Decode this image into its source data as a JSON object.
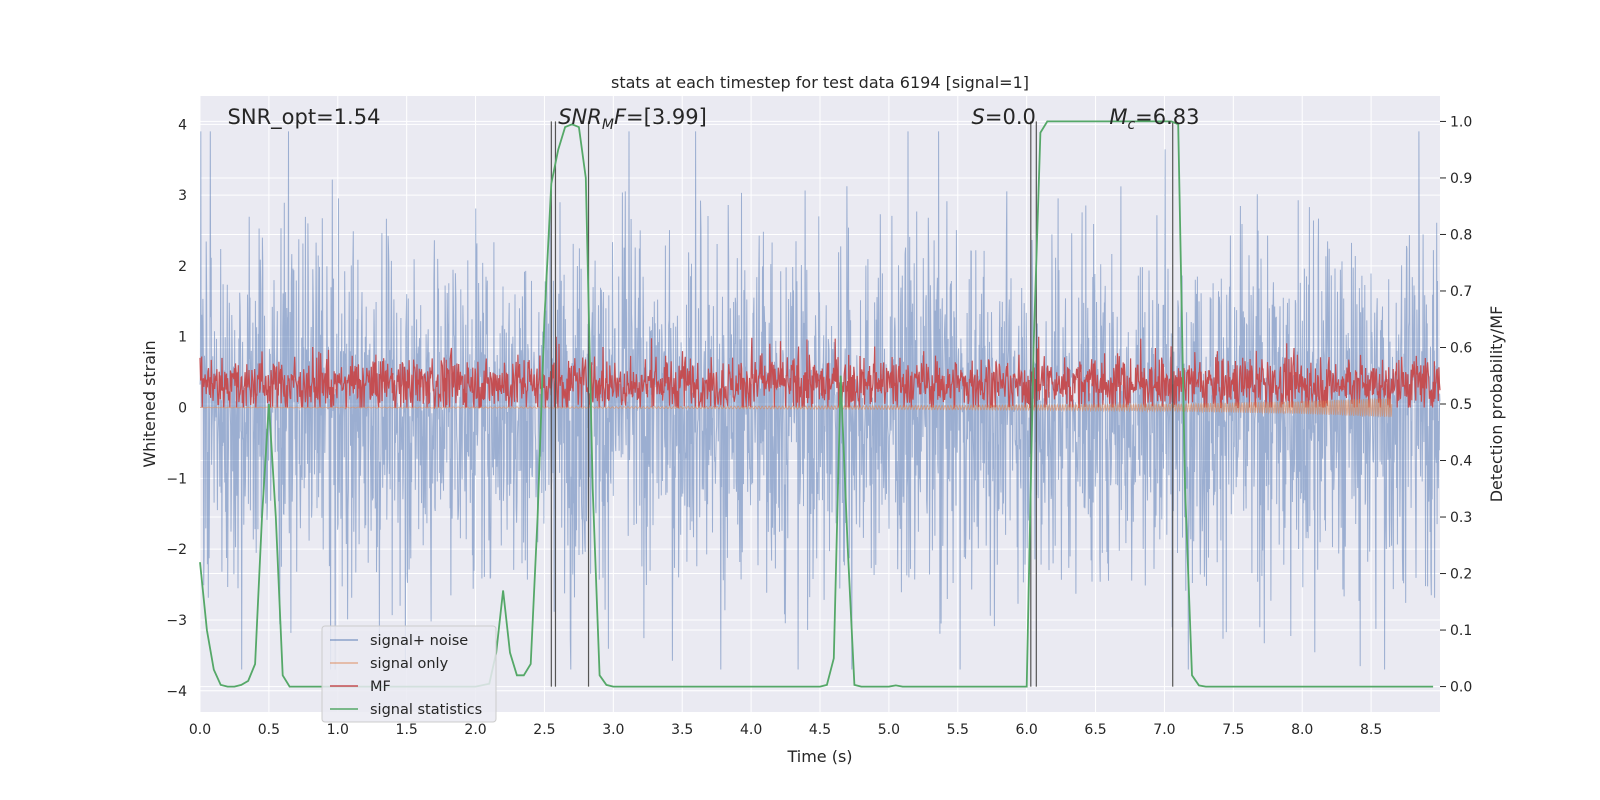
{
  "chart_data": {
    "type": "line",
    "title": "stats at each timestep for test data 6194 [signal=1]",
    "xlabel": "Time (s)",
    "ylabel_left": "Whitened strain",
    "ylabel_right": "Detection probability/MF",
    "xlim": [
      0,
      9.0
    ],
    "ylim_left": [
      -4.3,
      4.4
    ],
    "ylim_right": [
      -0.045,
      1.045
    ],
    "grid": true,
    "x_ticks": [
      "0.0",
      "0.5",
      "1.0",
      "1.5",
      "2.0",
      "2.5",
      "3.0",
      "3.5",
      "4.0",
      "4.5",
      "5.0",
      "5.5",
      "6.0",
      "6.5",
      "7.0",
      "7.5",
      "8.0",
      "8.5"
    ],
    "y_ticks_left": [
      "4",
      "3",
      "2",
      "1",
      "0",
      "−1",
      "−2",
      "−3",
      "−4"
    ],
    "y_ticks_right": [
      "1.0",
      "0.9",
      "0.8",
      "0.7",
      "0.6",
      "0.5",
      "0.4",
      "0.3",
      "0.2",
      "0.1",
      "0.0"
    ],
    "legend_position": "lower-left",
    "annotations": [
      {
        "text": "SNR_opt=1.54",
        "x": 0.2
      },
      {
        "text": "SNR_MF=[3.99]",
        "x": 2.6
      },
      {
        "text": "S=0.0",
        "x": 5.6
      },
      {
        "text": "M_c=6.83",
        "x": 6.6
      }
    ],
    "vlines": [
      2.55,
      2.58,
      2.82,
      6.03,
      6.07,
      7.06
    ],
    "series": [
      {
        "name": "signal+ noise",
        "color": "#4c72b0",
        "axis": "left",
        "style": "dense noise band",
        "approx_range": [
          -3.7,
          3.9
        ]
      },
      {
        "name": "signal only",
        "color": "#dd8452",
        "axis": "left",
        "style": "chirp, amplitude growing until merger",
        "x": [
          0.0,
          3.0,
          5.5,
          7.0,
          8.0,
          8.65
        ],
        "amplitude": [
          0.003,
          0.01,
          0.03,
          0.05,
          0.09,
          0.14
        ]
      },
      {
        "name": "MF",
        "color": "#c44e52",
        "axis": "left",
        "style": "dense positive noise",
        "approx_range": [
          0.0,
          1.0
        ]
      },
      {
        "name": "signal statistics",
        "color": "#55a868",
        "axis": "right",
        "x": [
          0.0,
          0.05,
          0.1,
          0.15,
          0.2,
          0.25,
          0.3,
          0.35,
          0.4,
          0.45,
          0.5,
          0.55,
          0.6,
          0.65,
          0.7,
          2.0,
          2.1,
          2.15,
          2.2,
          2.25,
          2.3,
          2.35,
          2.4,
          2.45,
          2.5,
          2.55,
          2.6,
          2.65,
          2.7,
          2.75,
          2.8,
          2.85,
          2.9,
          2.95,
          3.0,
          3.05,
          3.1,
          4.4,
          4.5,
          4.55,
          4.6,
          4.65,
          4.7,
          4.75,
          4.8,
          4.9,
          5.0,
          5.05,
          5.1,
          5.5,
          6.0,
          6.05,
          6.1,
          6.15,
          6.2,
          6.5,
          7.0,
          7.05,
          7.1,
          7.15,
          7.2,
          7.25,
          7.3,
          8.95
        ],
        "values": [
          0.22,
          0.1,
          0.03,
          0.003,
          0.0,
          0.0,
          0.003,
          0.01,
          0.04,
          0.3,
          0.5,
          0.3,
          0.02,
          0.0,
          0.0,
          0.0,
          0.005,
          0.06,
          0.17,
          0.06,
          0.02,
          0.02,
          0.04,
          0.3,
          0.65,
          0.89,
          0.95,
          0.99,
          0.995,
          0.99,
          0.9,
          0.35,
          0.02,
          0.003,
          0.0,
          0.0,
          0.0,
          0.0,
          0.0,
          0.003,
          0.05,
          0.55,
          0.25,
          0.003,
          0.0,
          0.0,
          0.0,
          0.002,
          0.0,
          0.0,
          0.0,
          0.6,
          0.98,
          1.0,
          1.0,
          1.0,
          1.0,
          1.0,
          0.995,
          0.35,
          0.02,
          0.002,
          0.0,
          0.0
        ]
      }
    ]
  }
}
